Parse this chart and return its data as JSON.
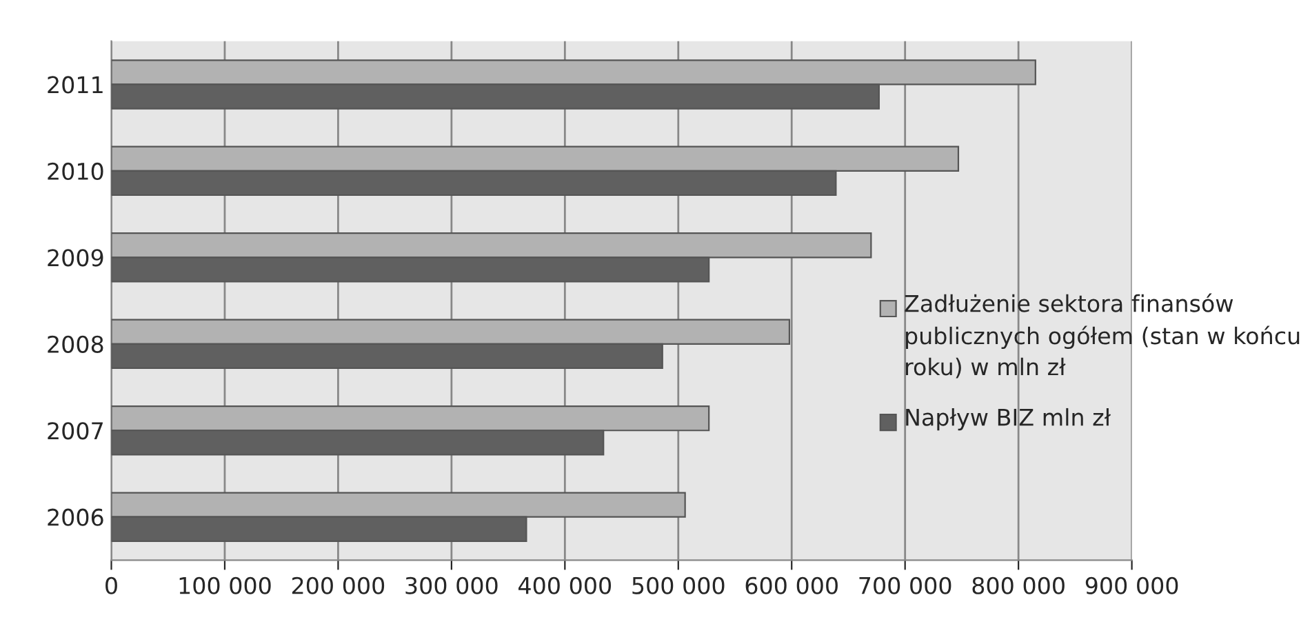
{
  "chart_data": {
    "type": "bar",
    "orientation": "horizontal",
    "categories": [
      "2011",
      "2010",
      "2009",
      "2008",
      "2007",
      "2006"
    ],
    "series": [
      {
        "name": "Zadłużenie sektora finansów publicznych ogółem (stan w końcu roku) w mln zł",
        "color": "#b2b2b2",
        "values": [
          815000,
          747000,
          670000,
          598000,
          527000,
          506000
        ]
      },
      {
        "name": "Napływ BIZ mln zł",
        "color": "#606060",
        "values": [
          677000,
          639000,
          527000,
          486000,
          434000,
          366000
        ]
      }
    ],
    "xlim": [
      0,
      900000
    ],
    "xticks": [
      {
        "value": 0,
        "label": "0"
      },
      {
        "value": 100000,
        "label": "100 000"
      },
      {
        "value": 200000,
        "label": "200 000"
      },
      {
        "value": 300000,
        "label": "300 000"
      },
      {
        "value": 400000,
        "label": "400 000"
      },
      {
        "value": 500000,
        "label": "500 000"
      },
      {
        "value": 600000,
        "label": "600 000"
      },
      {
        "value": 700000,
        "label": "700 000"
      },
      {
        "value": 800000,
        "label": "800 000"
      },
      {
        "value": 900000,
        "label": "900 000"
      }
    ],
    "grid": "x",
    "legend": "right"
  }
}
